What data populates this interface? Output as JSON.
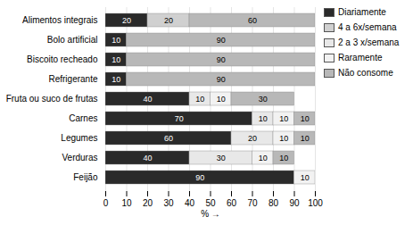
{
  "chart_data": {
    "type": "bar",
    "orientation": "horizontal",
    "stacked": true,
    "categories": [
      "Alimentos integrais",
      "Bolo artificial",
      "Biscoito recheado",
      "Refrigerante",
      "Fruta ou suco de frutas",
      "Carnes",
      "Legumes",
      "Verduras",
      "Feijão"
    ],
    "series": [
      {
        "name": "Diariamente",
        "color": "#2a2a2a",
        "values": [
          20,
          10,
          10,
          10,
          40,
          70,
          60,
          40,
          90
        ]
      },
      {
        "name": "4 a 6x/semana",
        "color": "#d0d0d0",
        "values": [
          20,
          0,
          0,
          0,
          0,
          0,
          0,
          0,
          0
        ]
      },
      {
        "name": "2 a 3 x/semana",
        "color": "#e8e8e8",
        "values": [
          0,
          0,
          0,
          0,
          10,
          10,
          20,
          30,
          0
        ]
      },
      {
        "name": "Raramente",
        "color": "#f2f2f2",
        "values": [
          0,
          0,
          0,
          0,
          10,
          10,
          10,
          10,
          10
        ]
      },
      {
        "name": "Não consome",
        "color": "#b8b8b8",
        "values": [
          60,
          90,
          90,
          90,
          30,
          10,
          10,
          10,
          0
        ]
      }
    ],
    "xlabel": "%",
    "xlim": [
      0,
      100
    ],
    "xticks": [
      0,
      10,
      20,
      30,
      40,
      50,
      60,
      70,
      80,
      90,
      100
    ],
    "grid": true,
    "data_labels": true,
    "legend": "right"
  }
}
